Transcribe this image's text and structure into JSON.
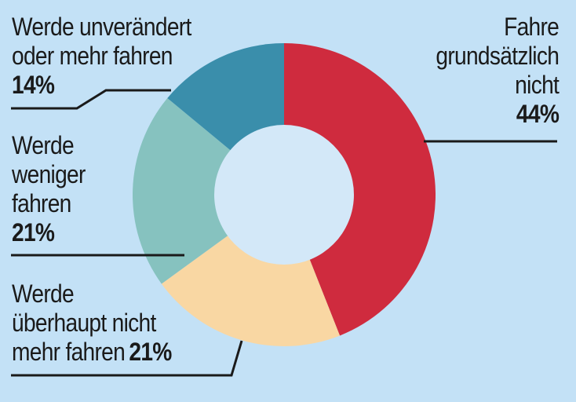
{
  "chart_data": {
    "type": "pie",
    "variant": "donut",
    "slices": [
      {
        "label": "Fahre grundsätzlich nicht",
        "value": 44,
        "color": "#cf2b3e"
      },
      {
        "label": "Werde überhaupt nicht mehr fahren",
        "value": 21,
        "color": "#f9d7a3"
      },
      {
        "label": "Werde weniger fahren",
        "value": 21,
        "color": "#86c2bf"
      },
      {
        "label": "Werde unverändert oder mehr fahren",
        "value": 14,
        "color": "#3a8eab"
      }
    ],
    "hole_color": "#d3e8f8"
  },
  "labels": {
    "top_left": {
      "lines": [
        "Werde unverändert",
        "oder mehr fahren"
      ],
      "pct": "14%"
    },
    "right": {
      "lines": [
        "Fahre",
        "grundsätzlich",
        "nicht"
      ],
      "pct": "44%"
    },
    "middle_left": {
      "lines": [
        "Werde",
        "weniger",
        "fahren"
      ],
      "pct": "21%"
    },
    "bottom_left": {
      "lines": [
        "Werde",
        "überhaupt nicht",
        "mehr fahren"
      ],
      "pct": "21%"
    }
  },
  "colors": {
    "background": "#c3e1f6",
    "leader_line": "#1a1a1a"
  }
}
